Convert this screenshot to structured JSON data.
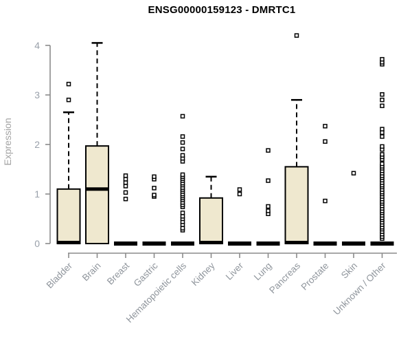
{
  "chart_data": {
    "type": "boxplot",
    "title": "ENSG00000159123 - DMRTC1",
    "ylabel": "Expression",
    "ylim": [
      0,
      4
    ],
    "yticks": [
      "0",
      "1",
      "2",
      "3",
      "4"
    ],
    "grid": false,
    "legend": "none",
    "categories": [
      "Bladder",
      "Brain",
      "Breast",
      "Gastric",
      "Hematopoietic cells",
      "Kidney",
      "Liver",
      "Lung",
      "Pancreas",
      "Prostate",
      "Skin",
      "Unknown / Other"
    ],
    "series": [
      {
        "category": "Bladder",
        "q1": 0,
        "median": 0.02,
        "q3": 1.1,
        "whisker_low": 0,
        "whisker_high": 2.65,
        "outliers": [
          2.9,
          3.22
        ]
      },
      {
        "category": "Brain",
        "q1": 0,
        "median": 1.1,
        "q3": 1.97,
        "whisker_low": 0,
        "whisker_high": 4.05,
        "outliers": []
      },
      {
        "category": "Breast",
        "q1": 0,
        "median": 0.02,
        "q3": 0,
        "whisker_low": 0,
        "whisker_high": 0,
        "outliers": [
          0.9,
          1.03,
          1.16,
          1.23,
          1.3,
          1.37
        ]
      },
      {
        "category": "Gastric",
        "q1": 0,
        "median": 0.02,
        "q3": 0,
        "whisker_low": 0,
        "whisker_high": 0,
        "outliers": [
          0.95,
          0.98,
          1.12,
          1.3,
          1.35
        ]
      },
      {
        "category": "Hematopoietic cells",
        "q1": 0,
        "median": 0.02,
        "q3": 0,
        "whisker_low": 0,
        "whisker_high": 0,
        "outliers": [
          0.27,
          0.31,
          0.38,
          0.44,
          0.5,
          0.55,
          0.62,
          0.74,
          0.78,
          0.83,
          0.88,
          0.92,
          0.96,
          1.0,
          1.05,
          1.09,
          1.13,
          1.18,
          1.22,
          1.27,
          1.31,
          1.35,
          1.39,
          1.66,
          1.72,
          1.78,
          1.91,
          2.04,
          2.16,
          2.57
        ]
      },
      {
        "category": "Kidney",
        "q1": 0,
        "median": 0.02,
        "q3": 0.92,
        "whisker_low": 0,
        "whisker_high": 1.35,
        "outliers": []
      },
      {
        "category": "Liver",
        "q1": 0,
        "median": 0.02,
        "q3": 0,
        "whisker_low": 0,
        "whisker_high": 0,
        "outliers": [
          1.0,
          1.09
        ]
      },
      {
        "category": "Lung",
        "q1": 0,
        "median": 0.02,
        "q3": 0,
        "whisker_low": 0,
        "whisker_high": 0,
        "outliers": [
          0.6,
          0.66,
          0.75,
          1.27,
          1.88
        ]
      },
      {
        "category": "Pancreas",
        "q1": 0,
        "median": 0.02,
        "q3": 1.55,
        "whisker_low": 0,
        "whisker_high": 2.9,
        "outliers": [
          4.2
        ]
      },
      {
        "category": "Prostate",
        "q1": 0,
        "median": 0.02,
        "q3": 0,
        "whisker_low": 0,
        "whisker_high": 0,
        "outliers": [
          0.86,
          2.06,
          2.37
        ]
      },
      {
        "category": "Skin",
        "q1": 0,
        "median": 0.02,
        "q3": 0,
        "whisker_low": 0,
        "whisker_high": 0,
        "outliers": [
          1.42
        ]
      },
      {
        "category": "Unknown / Other",
        "q1": 0,
        "median": 0.02,
        "q3": 0,
        "whisker_low": 0,
        "whisker_high": 0,
        "outliers": [
          0.1,
          0.14,
          0.19,
          0.24,
          0.29,
          0.33,
          0.38,
          0.43,
          0.48,
          0.52,
          0.57,
          0.62,
          0.66,
          0.71,
          0.76,
          0.81,
          0.85,
          0.9,
          0.95,
          1.0,
          1.04,
          1.09,
          1.14,
          1.18,
          1.23,
          1.28,
          1.33,
          1.37,
          1.42,
          1.47,
          1.52,
          1.56,
          1.61,
          1.7,
          1.75,
          1.8,
          1.9,
          1.96,
          2.16,
          2.24,
          2.31,
          2.78,
          2.9,
          3.01,
          3.62,
          3.66,
          3.72
        ]
      }
    ],
    "colors": {
      "box_fill": "#EFE8CF",
      "box_border": "#000000",
      "median": "#000000",
      "whisker": "#000000",
      "axis": "#8B8B8B",
      "y_tick_label": "#99A0AA",
      "x_tick_label": "#8F959C",
      "ylabel_color": "#A3A3A3",
      "title_color": "#000000",
      "outlier_fill": "#FFFFFF",
      "outlier_border": "#000000"
    }
  }
}
